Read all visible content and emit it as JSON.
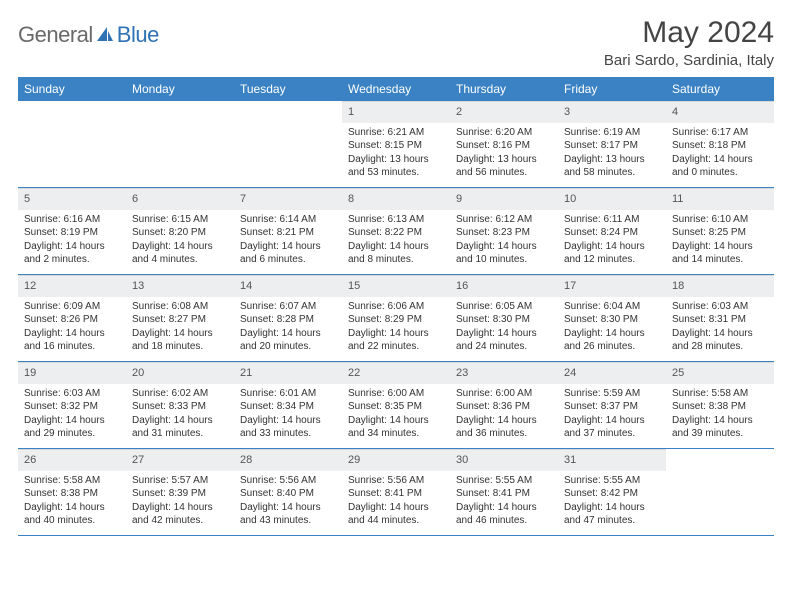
{
  "logo": {
    "text1": "General",
    "text2": "Blue"
  },
  "title": "May 2024",
  "location": "Bari Sardo, Sardinia, Italy",
  "colors": {
    "header_bg": "#3a82c4",
    "header_text": "#ffffff",
    "daynum_bg": "#eceef0",
    "border": "#3a82c4",
    "logo_gray": "#6a6a6a",
    "logo_blue": "#2e72b4"
  },
  "dayNames": [
    "Sunday",
    "Monday",
    "Tuesday",
    "Wednesday",
    "Thursday",
    "Friday",
    "Saturday"
  ],
  "weeks": [
    [
      {
        "empty": true
      },
      {
        "empty": true
      },
      {
        "empty": true
      },
      {
        "num": "1",
        "sunrise": "Sunrise: 6:21 AM",
        "sunset": "Sunset: 8:15 PM",
        "daylight": "Daylight: 13 hours and 53 minutes."
      },
      {
        "num": "2",
        "sunrise": "Sunrise: 6:20 AM",
        "sunset": "Sunset: 8:16 PM",
        "daylight": "Daylight: 13 hours and 56 minutes."
      },
      {
        "num": "3",
        "sunrise": "Sunrise: 6:19 AM",
        "sunset": "Sunset: 8:17 PM",
        "daylight": "Daylight: 13 hours and 58 minutes."
      },
      {
        "num": "4",
        "sunrise": "Sunrise: 6:17 AM",
        "sunset": "Sunset: 8:18 PM",
        "daylight": "Daylight: 14 hours and 0 minutes."
      }
    ],
    [
      {
        "num": "5",
        "sunrise": "Sunrise: 6:16 AM",
        "sunset": "Sunset: 8:19 PM",
        "daylight": "Daylight: 14 hours and 2 minutes."
      },
      {
        "num": "6",
        "sunrise": "Sunrise: 6:15 AM",
        "sunset": "Sunset: 8:20 PM",
        "daylight": "Daylight: 14 hours and 4 minutes."
      },
      {
        "num": "7",
        "sunrise": "Sunrise: 6:14 AM",
        "sunset": "Sunset: 8:21 PM",
        "daylight": "Daylight: 14 hours and 6 minutes."
      },
      {
        "num": "8",
        "sunrise": "Sunrise: 6:13 AM",
        "sunset": "Sunset: 8:22 PM",
        "daylight": "Daylight: 14 hours and 8 minutes."
      },
      {
        "num": "9",
        "sunrise": "Sunrise: 6:12 AM",
        "sunset": "Sunset: 8:23 PM",
        "daylight": "Daylight: 14 hours and 10 minutes."
      },
      {
        "num": "10",
        "sunrise": "Sunrise: 6:11 AM",
        "sunset": "Sunset: 8:24 PM",
        "daylight": "Daylight: 14 hours and 12 minutes."
      },
      {
        "num": "11",
        "sunrise": "Sunrise: 6:10 AM",
        "sunset": "Sunset: 8:25 PM",
        "daylight": "Daylight: 14 hours and 14 minutes."
      }
    ],
    [
      {
        "num": "12",
        "sunrise": "Sunrise: 6:09 AM",
        "sunset": "Sunset: 8:26 PM",
        "daylight": "Daylight: 14 hours and 16 minutes."
      },
      {
        "num": "13",
        "sunrise": "Sunrise: 6:08 AM",
        "sunset": "Sunset: 8:27 PM",
        "daylight": "Daylight: 14 hours and 18 minutes."
      },
      {
        "num": "14",
        "sunrise": "Sunrise: 6:07 AM",
        "sunset": "Sunset: 8:28 PM",
        "daylight": "Daylight: 14 hours and 20 minutes."
      },
      {
        "num": "15",
        "sunrise": "Sunrise: 6:06 AM",
        "sunset": "Sunset: 8:29 PM",
        "daylight": "Daylight: 14 hours and 22 minutes."
      },
      {
        "num": "16",
        "sunrise": "Sunrise: 6:05 AM",
        "sunset": "Sunset: 8:30 PM",
        "daylight": "Daylight: 14 hours and 24 minutes."
      },
      {
        "num": "17",
        "sunrise": "Sunrise: 6:04 AM",
        "sunset": "Sunset: 8:30 PM",
        "daylight": "Daylight: 14 hours and 26 minutes."
      },
      {
        "num": "18",
        "sunrise": "Sunrise: 6:03 AM",
        "sunset": "Sunset: 8:31 PM",
        "daylight": "Daylight: 14 hours and 28 minutes."
      }
    ],
    [
      {
        "num": "19",
        "sunrise": "Sunrise: 6:03 AM",
        "sunset": "Sunset: 8:32 PM",
        "daylight": "Daylight: 14 hours and 29 minutes."
      },
      {
        "num": "20",
        "sunrise": "Sunrise: 6:02 AM",
        "sunset": "Sunset: 8:33 PM",
        "daylight": "Daylight: 14 hours and 31 minutes."
      },
      {
        "num": "21",
        "sunrise": "Sunrise: 6:01 AM",
        "sunset": "Sunset: 8:34 PM",
        "daylight": "Daylight: 14 hours and 33 minutes."
      },
      {
        "num": "22",
        "sunrise": "Sunrise: 6:00 AM",
        "sunset": "Sunset: 8:35 PM",
        "daylight": "Daylight: 14 hours and 34 minutes."
      },
      {
        "num": "23",
        "sunrise": "Sunrise: 6:00 AM",
        "sunset": "Sunset: 8:36 PM",
        "daylight": "Daylight: 14 hours and 36 minutes."
      },
      {
        "num": "24",
        "sunrise": "Sunrise: 5:59 AM",
        "sunset": "Sunset: 8:37 PM",
        "daylight": "Daylight: 14 hours and 37 minutes."
      },
      {
        "num": "25",
        "sunrise": "Sunrise: 5:58 AM",
        "sunset": "Sunset: 8:38 PM",
        "daylight": "Daylight: 14 hours and 39 minutes."
      }
    ],
    [
      {
        "num": "26",
        "sunrise": "Sunrise: 5:58 AM",
        "sunset": "Sunset: 8:38 PM",
        "daylight": "Daylight: 14 hours and 40 minutes."
      },
      {
        "num": "27",
        "sunrise": "Sunrise: 5:57 AM",
        "sunset": "Sunset: 8:39 PM",
        "daylight": "Daylight: 14 hours and 42 minutes."
      },
      {
        "num": "28",
        "sunrise": "Sunrise: 5:56 AM",
        "sunset": "Sunset: 8:40 PM",
        "daylight": "Daylight: 14 hours and 43 minutes."
      },
      {
        "num": "29",
        "sunrise": "Sunrise: 5:56 AM",
        "sunset": "Sunset: 8:41 PM",
        "daylight": "Daylight: 14 hours and 44 minutes."
      },
      {
        "num": "30",
        "sunrise": "Sunrise: 5:55 AM",
        "sunset": "Sunset: 8:41 PM",
        "daylight": "Daylight: 14 hours and 46 minutes."
      },
      {
        "num": "31",
        "sunrise": "Sunrise: 5:55 AM",
        "sunset": "Sunset: 8:42 PM",
        "daylight": "Daylight: 14 hours and 47 minutes."
      },
      {
        "empty": true
      }
    ]
  ]
}
